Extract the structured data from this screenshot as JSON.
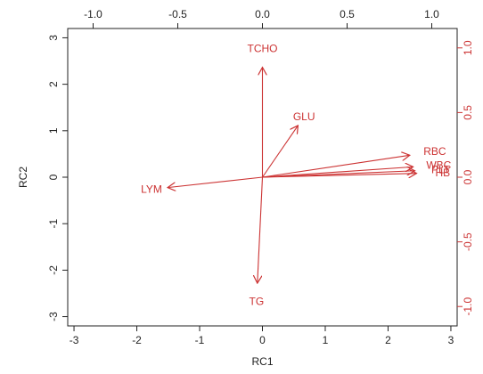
{
  "chart_data": {
    "type": "biplot",
    "xlabel": "RC1",
    "ylabel": "RC2",
    "xlim": [
      -3.1,
      3.1
    ],
    "ylim": [
      -3.2,
      3.2
    ],
    "x_ticks": [
      -3,
      -2,
      -1,
      0,
      1,
      2,
      3
    ],
    "x_tick_labels": [
      "-3",
      "-2",
      "-1",
      "0",
      "1",
      "2",
      "3"
    ],
    "y_ticks": [
      -3,
      -2,
      -1,
      0,
      1,
      2,
      3
    ],
    "y_tick_labels": [
      "-3",
      "-2",
      "-1",
      "0",
      "1",
      "2",
      "3"
    ],
    "loading_axis_lim": [
      -1.15,
      1.15
    ],
    "top_ticks": [
      -1.0,
      -0.5,
      0.0,
      0.5,
      1.0
    ],
    "top_tick_labels": [
      "-1.0",
      "-0.5",
      "0.0",
      "0.5",
      "1.0"
    ],
    "right_ticks": [
      -1.0,
      -0.5,
      0.0,
      0.5,
      1.0
    ],
    "right_tick_labels": [
      "-1.0",
      "-0.5",
      "0.0",
      "0.5",
      "1.0"
    ],
    "arrow_color": "#cc3333",
    "vectors": [
      {
        "name": "TCHO",
        "x": 0.0,
        "y": 0.85
      },
      {
        "name": "GLU",
        "x": 0.21,
        "y": 0.4
      },
      {
        "name": "RBC",
        "x": 0.87,
        "y": 0.17
      },
      {
        "name": "WBC",
        "x": 0.89,
        "y": 0.08
      },
      {
        "name": "PLT",
        "x": 0.9,
        "y": 0.05
      },
      {
        "name": "HB",
        "x": 0.91,
        "y": 0.03
      },
      {
        "name": "LYM",
        "x": -0.56,
        "y": -0.08
      },
      {
        "name": "TG",
        "x": -0.03,
        "y": -0.82
      }
    ]
  }
}
